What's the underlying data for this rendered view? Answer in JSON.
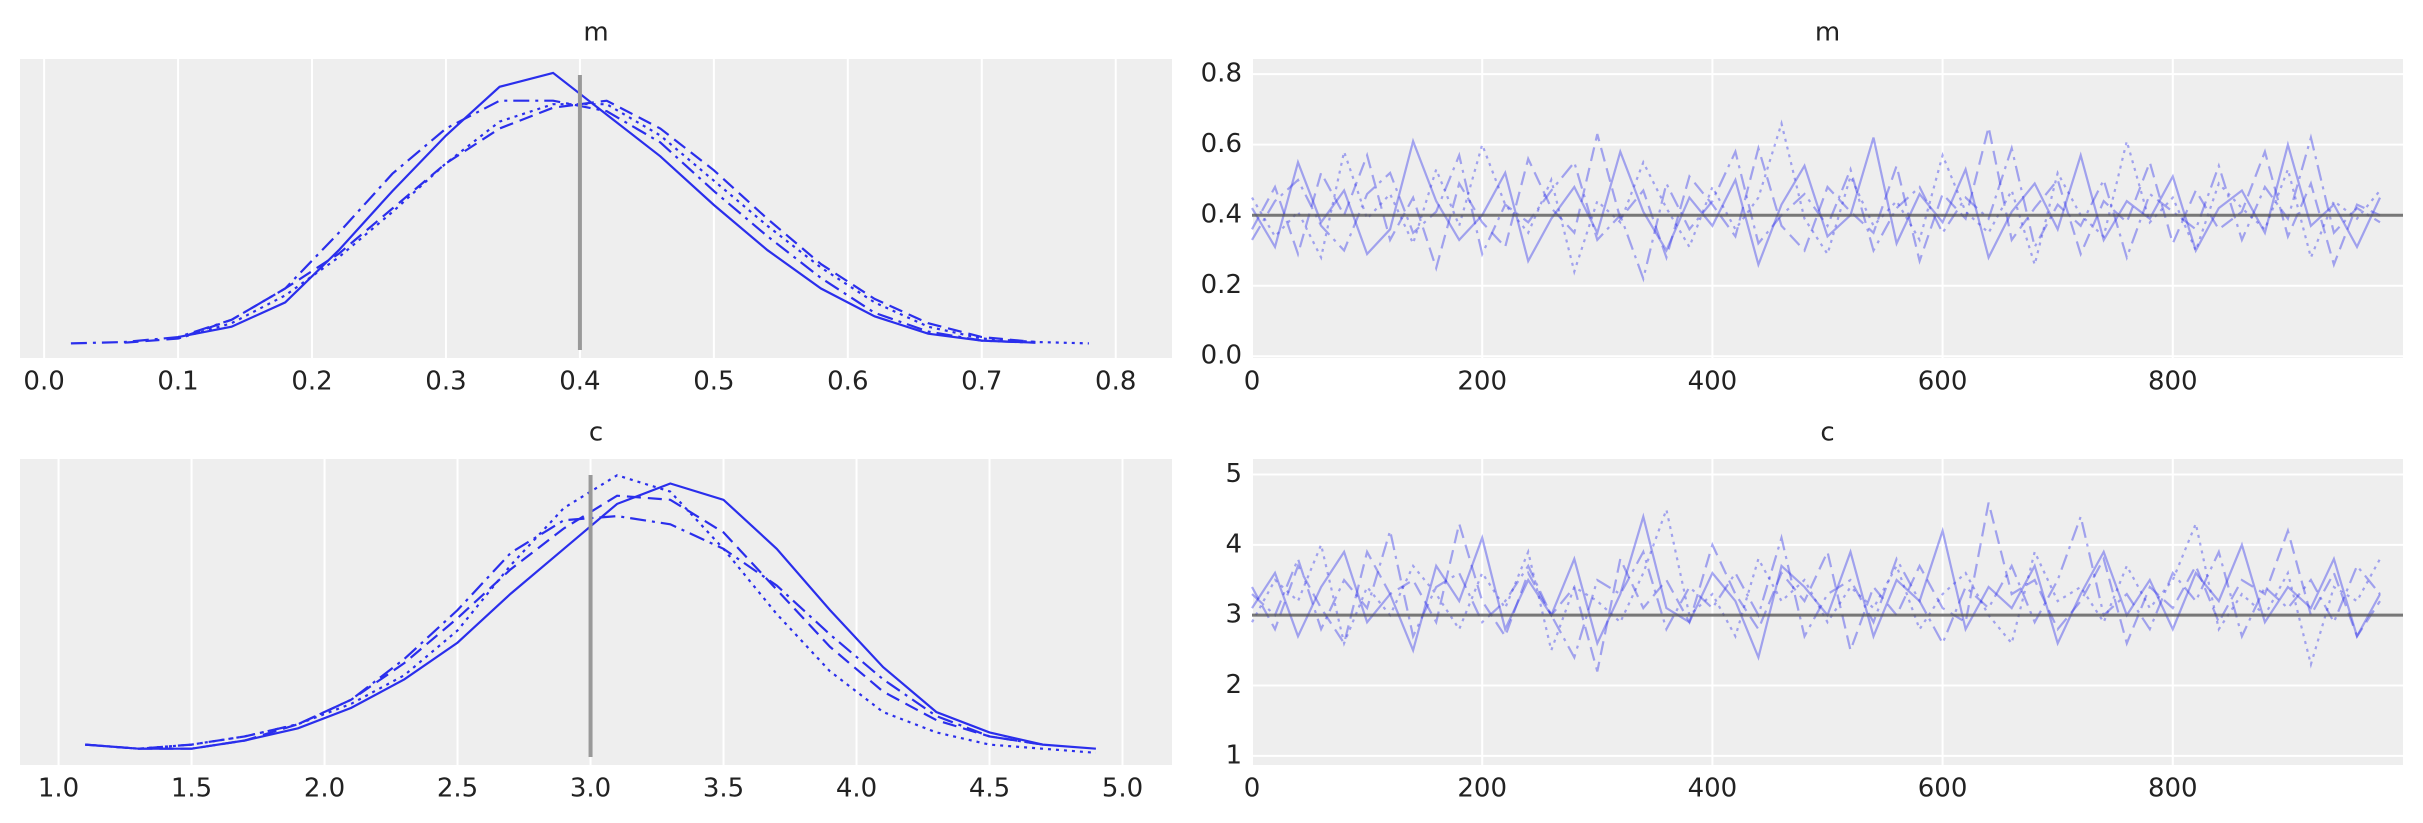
{
  "chart_data": [
    {
      "type": "line",
      "title": "m",
      "background": "#eeeeee",
      "grid": true,
      "xlim": [
        -0.018,
        0.842
      ],
      "ylim": [
        -0.2,
        4.1
      ],
      "xticks": [
        {
          "value": 0,
          "label": "0.0"
        },
        0.1,
        0.2,
        0.3,
        0.4,
        0.5,
        0.6,
        0.7,
        0.8
      ],
      "xline": 0.4,
      "ref_color": "#999999",
      "x": [
        0.02,
        0.06,
        0.1,
        0.14,
        0.18,
        0.22,
        0.26,
        0.3,
        0.34,
        0.38,
        0.42,
        0.46,
        0.5,
        0.54,
        0.58,
        0.62,
        0.66,
        0.7,
        0.74,
        0.78
      ],
      "series": [
        {
          "color": "#2a2eec",
          "linestyle": "solid",
          "values": [
            null,
            null,
            0.1,
            0.25,
            0.6,
            1.35,
            2.2,
            3.0,
            3.7,
            3.9,
            3.3,
            2.7,
            2.0,
            1.35,
            0.8,
            0.4,
            0.15,
            0.05,
            0.02,
            null
          ]
        },
        {
          "color": "#2a2eec",
          "linestyle": "dashed",
          "values": [
            null,
            0.02,
            0.08,
            0.35,
            0.8,
            1.3,
            1.95,
            2.6,
            3.1,
            3.4,
            3.5,
            3.1,
            2.5,
            1.8,
            1.15,
            0.65,
            0.3,
            0.1,
            0.03,
            null
          ]
        },
        {
          "color": "#2a2eec",
          "linestyle": "dotted",
          "values": [
            null,
            null,
            0.08,
            0.3,
            0.7,
            1.25,
            1.9,
            2.6,
            3.2,
            3.45,
            3.45,
            3.0,
            2.35,
            1.7,
            1.1,
            0.6,
            0.25,
            0.08,
            0.03,
            0.01
          ]
        },
        {
          "color": "#2a2eec",
          "linestyle": "dashdot",
          "values": [
            0.01,
            0.03,
            0.1,
            0.35,
            0.8,
            1.6,
            2.45,
            3.1,
            3.5,
            3.5,
            3.35,
            2.9,
            2.2,
            1.55,
            0.95,
            0.45,
            0.18,
            0.05,
            0.02,
            null
          ]
        }
      ]
    },
    {
      "type": "line",
      "title": "m",
      "background": "#eeeeee",
      "grid": true,
      "xlim": [
        0,
        1000
      ],
      "ylim": [
        -0.005,
        0.843
      ],
      "xticks": [
        0,
        200,
        400,
        600,
        800
      ],
      "yticks": [
        {
          "value": 0,
          "label": "0.0"
        },
        0.2,
        0.4,
        0.6,
        0.8
      ],
      "yline": 0.4,
      "ref_color": "#555555",
      "alpha": 0.4,
      "x": [
        0,
        20,
        40,
        60,
        80,
        100,
        120,
        140,
        160,
        180,
        200,
        220,
        240,
        260,
        280,
        300,
        320,
        340,
        360,
        380,
        400,
        420,
        440,
        460,
        480,
        500,
        520,
        540,
        560,
        580,
        600,
        620,
        640,
        660,
        680,
        700,
        720,
        740,
        760,
        780,
        800,
        820,
        840,
        860,
        880,
        900,
        920,
        940,
        960,
        980
      ],
      "series": [
        {
          "color": "#2a2eec",
          "linestyle": "solid",
          "values": [
            0.42,
            0.31,
            0.55,
            0.38,
            0.47,
            0.29,
            0.36,
            0.61,
            0.44,
            0.33,
            0.4,
            0.52,
            0.27,
            0.39,
            0.48,
            0.35,
            0.58,
            0.41,
            0.3,
            0.45,
            0.37,
            0.5,
            0.26,
            0.43,
            0.54,
            0.34,
            0.4,
            0.62,
            0.32,
            0.46,
            0.38,
            0.53,
            0.28,
            0.41,
            0.49,
            0.36,
            0.57,
            0.33,
            0.44,
            0.39,
            0.51,
            0.3,
            0.42,
            0.47,
            0.35,
            0.6,
            0.37,
            0.43,
            0.31,
            0.45
          ]
        },
        {
          "color": "#2a2eec",
          "linestyle": "dashed",
          "values": [
            0.36,
            0.48,
            0.29,
            0.52,
            0.4,
            0.57,
            0.33,
            0.45,
            0.25,
            0.49,
            0.38,
            0.31,
            0.56,
            0.42,
            0.35,
            0.63,
            0.39,
            0.47,
            0.28,
            0.51,
            0.43,
            0.34,
            0.59,
            0.37,
            0.3,
            0.48,
            0.41,
            0.35,
            0.54,
            0.27,
            0.46,
            0.39,
            0.65,
            0.33,
            0.42,
            0.5,
            0.29,
            0.44,
            0.38,
            0.55,
            0.32,
            0.47,
            0.36,
            0.41,
            0.58,
            0.34,
            0.49,
            0.26,
            0.43,
            0.4
          ]
        },
        {
          "color": "#2a2eec",
          "linestyle": "dotted",
          "values": [
            0.45,
            0.34,
            0.41,
            0.28,
            0.58,
            0.39,
            0.46,
            0.32,
            0.53,
            0.37,
            0.6,
            0.43,
            0.35,
            0.5,
            0.24,
            0.44,
            0.38,
            0.55,
            0.42,
            0.31,
            0.48,
            0.36,
            0.45,
            0.66,
            0.39,
            0.29,
            0.51,
            0.37,
            0.44,
            0.33,
            0.57,
            0.41,
            0.35,
            0.47,
            0.26,
            0.52,
            0.4,
            0.34,
            0.61,
            0.38,
            0.45,
            0.3,
            0.49,
            0.42,
            0.36,
            0.53,
            0.28,
            0.44,
            0.39,
            0.47
          ]
        },
        {
          "color": "#2a2eec",
          "linestyle": "dashdot",
          "values": [
            0.33,
            0.44,
            0.5,
            0.37,
            0.3,
            0.46,
            0.52,
            0.35,
            0.41,
            0.57,
            0.29,
            0.43,
            0.38,
            0.47,
            0.55,
            0.33,
            0.4,
            0.22,
            0.49,
            0.36,
            0.44,
            0.58,
            0.32,
            0.4,
            0.46,
            0.37,
            0.53,
            0.3,
            0.42,
            0.48,
            0.35,
            0.45,
            0.39,
            0.59,
            0.31,
            0.43,
            0.37,
            0.5,
            0.28,
            0.46,
            0.41,
            0.36,
            0.54,
            0.33,
            0.48,
            0.39,
            0.62,
            0.35,
            0.42,
            0.38
          ]
        }
      ]
    },
    {
      "type": "line",
      "title": "c",
      "background": "#eeeeee",
      "grid": true,
      "xlim": [
        0.855,
        5.186
      ],
      "ylim": [
        -0.03,
        0.72
      ],
      "xticks": [
        {
          "value": 1,
          "label": "1.0"
        },
        1.5,
        {
          "value": 2,
          "label": "2.0"
        },
        2.5,
        {
          "value": 3,
          "label": "3.0"
        },
        3.5,
        {
          "value": 4,
          "label": "4.0"
        },
        4.5,
        {
          "value": 5,
          "label": "5.0"
        }
      ],
      "xline": 3.0,
      "ref_color": "#999999",
      "x": [
        1.1,
        1.3,
        1.5,
        1.7,
        1.9,
        2.1,
        2.3,
        2.5,
        2.7,
        2.9,
        3.1,
        3.3,
        3.5,
        3.7,
        3.9,
        4.1,
        4.3,
        4.5,
        4.7,
        4.9
      ],
      "series": [
        {
          "color": "#2a2eec",
          "linestyle": "solid",
          "values": [
            0.02,
            0.01,
            0.01,
            0.03,
            0.06,
            0.11,
            0.18,
            0.27,
            0.39,
            0.5,
            0.61,
            0.66,
            0.62,
            0.5,
            0.35,
            0.21,
            0.1,
            0.05,
            0.02,
            0.01
          ]
        },
        {
          "color": "#2a2eec",
          "linestyle": "dashed",
          "values": [
            null,
            0.01,
            0.01,
            0.03,
            0.07,
            0.13,
            0.22,
            0.33,
            0.45,
            0.55,
            0.63,
            0.62,
            0.54,
            0.4,
            0.26,
            0.15,
            0.08,
            0.04,
            0.02,
            null
          ]
        },
        {
          "color": "#2a2eec",
          "linestyle": "dotted",
          "values": [
            0.02,
            0.01,
            0.02,
            0.04,
            0.07,
            0.12,
            0.19,
            0.3,
            0.46,
            0.6,
            0.68,
            0.64,
            0.5,
            0.34,
            0.2,
            0.1,
            0.05,
            0.02,
            0.01,
            0.0
          ]
        },
        {
          "color": "#2a2eec",
          "linestyle": "dashdot",
          "values": [
            0.02,
            0.01,
            0.02,
            0.04,
            0.07,
            0.13,
            0.23,
            0.35,
            0.49,
            0.57,
            0.58,
            0.56,
            0.5,
            0.41,
            0.29,
            0.18,
            0.09,
            0.04,
            0.02,
            null
          ]
        }
      ]
    },
    {
      "type": "line",
      "title": "c",
      "background": "#eeeeee",
      "grid": true,
      "xlim": [
        0,
        1000
      ],
      "ylim": [
        0.87,
        5.22
      ],
      "xticks": [
        0,
        200,
        400,
        600,
        800
      ],
      "yticks": [
        1,
        2,
        3,
        4,
        5
      ],
      "yline": 3.0,
      "ref_color": "#555555",
      "alpha": 0.4,
      "x": [
        0,
        20,
        40,
        60,
        80,
        100,
        120,
        140,
        160,
        180,
        200,
        220,
        240,
        260,
        280,
        300,
        320,
        340,
        360,
        380,
        400,
        420,
        440,
        460,
        480,
        500,
        520,
        540,
        560,
        580,
        600,
        620,
        640,
        660,
        680,
        700,
        720,
        740,
        760,
        780,
        800,
        820,
        840,
        860,
        880,
        900,
        920,
        940,
        960,
        980
      ],
      "series": [
        {
          "color": "#2a2eec",
          "linestyle": "solid",
          "values": [
            3.1,
            3.6,
            2.7,
            3.4,
            3.9,
            2.9,
            3.3,
            2.5,
            3.7,
            3.2,
            4.1,
            2.8,
            3.5,
            3.0,
            3.8,
            2.6,
            3.3,
            4.4,
            3.1,
            2.9,
            3.6,
            3.2,
            2.4,
            3.7,
            3.4,
            3.0,
            3.9,
            2.7,
            3.5,
            3.2,
            4.2,
            2.8,
            3.4,
            3.1,
            3.7,
            2.6,
            3.3,
            3.9,
            3.0,
            3.5,
            2.8,
            3.6,
            3.2,
            4.0,
            2.9,
            3.4,
            3.1,
            3.8,
            2.7,
            3.3
          ]
        },
        {
          "color": "#2a2eec",
          "linestyle": "dashed",
          "values": [
            3.4,
            2.8,
            3.7,
            3.1,
            2.6,
            3.9,
            3.3,
            3.5,
            2.9,
            4.3,
            3.2,
            2.7,
            3.6,
            3.0,
            3.4,
            2.2,
            3.8,
            3.1,
            3.5,
            2.9,
            4.0,
            3.3,
            2.8,
            3.6,
            3.2,
            3.9,
            2.5,
            3.4,
            3.0,
            3.7,
            3.1,
            2.9,
            4.6,
            3.3,
            3.5,
            2.8,
            3.2,
            3.8,
            2.6,
            3.4,
            3.1,
            3.7,
            2.9,
            3.5,
            3.3,
            4.2,
            3.0,
            3.6,
            2.7,
            3.2
          ]
        },
        {
          "color": "#2a2eec",
          "linestyle": "dotted",
          "values": [
            2.9,
            3.5,
            3.2,
            4.0,
            2.6,
            3.4,
            3.0,
            3.7,
            3.3,
            2.8,
            3.6,
            3.1,
            3.9,
            2.5,
            3.4,
            3.2,
            2.9,
            3.6,
            4.5,
            3.0,
            3.3,
            2.7,
            3.8,
            3.2,
            3.5,
            2.9,
            3.4,
            3.1,
            3.7,
            2.8,
            3.3,
            3.6,
            3.0,
            2.6,
            3.9,
            3.2,
            3.4,
            2.9,
            3.7,
            3.1,
            3.5,
            4.3,
            2.8,
            3.3,
            3.0,
            3.6,
            2.3,
            3.4,
            3.2,
            3.8
          ]
        },
        {
          "color": "#2a2eec",
          "linestyle": "dashdot",
          "values": [
            3.3,
            3.0,
            3.8,
            2.8,
            3.5,
            3.1,
            4.2,
            2.7,
            3.4,
            3.6,
            2.9,
            3.2,
            3.7,
            3.0,
            2.4,
            3.5,
            3.3,
            3.9,
            2.8,
            3.4,
            3.1,
            3.6,
            3.0,
            4.1,
            2.7,
            3.3,
            3.5,
            2.9,
            3.8,
            3.2,
            2.6,
            3.4,
            3.1,
            3.7,
            2.9,
            3.5,
            4.4,
            3.0,
            3.3,
            2.8,
            3.6,
            3.2,
            3.9,
            2.7,
            3.4,
            3.1,
            3.5,
            2.9,
            3.7,
            3.3
          ]
        }
      ]
    }
  ]
}
